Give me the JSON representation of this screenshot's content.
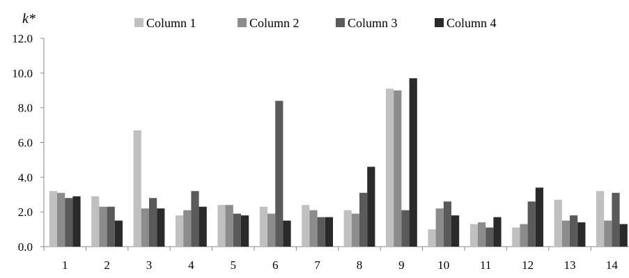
{
  "chart_data": {
    "type": "bar",
    "title": "",
    "xlabel": "",
    "ylabel": "k*",
    "ylim": [
      0,
      12
    ],
    "yticks": [
      0,
      2,
      4,
      6,
      8,
      10,
      12
    ],
    "ytick_labels": [
      "0.0",
      "2.0",
      "4.0",
      "6.0",
      "8.0",
      "10.0",
      "12.0"
    ],
    "grid": false,
    "legend_position": "top",
    "categories": [
      "1",
      "2",
      "3",
      "4",
      "5",
      "6",
      "7",
      "8",
      "9",
      "10",
      "11",
      "12",
      "13",
      "14"
    ],
    "series": [
      {
        "name": "Column 1",
        "color": "#c0c0c0",
        "values": [
          3.2,
          2.9,
          6.7,
          1.8,
          2.4,
          2.3,
          2.4,
          2.1,
          9.1,
          1.0,
          1.3,
          1.1,
          2.7,
          3.2
        ]
      },
      {
        "name": "Column 2",
        "color": "#8c8c8c",
        "values": [
          3.1,
          2.3,
          2.2,
          2.1,
          2.4,
          1.9,
          2.1,
          1.9,
          9.0,
          2.2,
          1.4,
          1.3,
          1.5,
          1.5
        ]
      },
      {
        "name": "Column 3",
        "color": "#5a5a5a",
        "values": [
          2.8,
          2.3,
          2.8,
          3.2,
          1.9,
          8.4,
          1.7,
          3.1,
          2.1,
          2.6,
          1.1,
          2.6,
          1.8,
          3.1
        ]
      },
      {
        "name": "Column 4",
        "color": "#2a2a2a",
        "values": [
          2.9,
          1.5,
          2.2,
          2.3,
          1.8,
          1.5,
          1.7,
          4.6,
          9.7,
          1.8,
          1.7,
          3.4,
          1.4,
          1.3
        ]
      }
    ]
  }
}
